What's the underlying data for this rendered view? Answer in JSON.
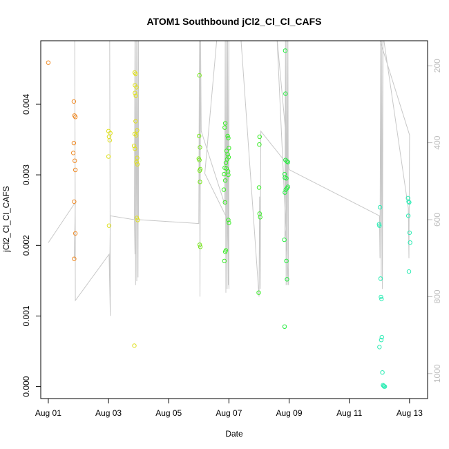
{
  "chart_data": {
    "type": "scatter",
    "title": "ATOM1 Southbound jCl2_Cl_Cl_CAFS",
    "xlabel": "Date",
    "ylabel": "jCl2_Cl_Cl_CAFS",
    "x_ticks": [
      "Aug 01",
      "Aug 03",
      "Aug 05",
      "Aug 07",
      "Aug 09",
      "Aug 11",
      "Aug 13"
    ],
    "x_tick_days": [
      1,
      3,
      5,
      7,
      9,
      11,
      13
    ],
    "xlim_days": [
      0.75,
      13.6
    ],
    "ylim": [
      -0.00017,
      0.0049
    ],
    "y_ticks": [
      0.0,
      0.001,
      0.002,
      0.003,
      0.004
    ],
    "y_tick_labels": [
      "0.000",
      "0.001",
      "0.002",
      "0.003",
      "0.004"
    ],
    "secondary_axis": {
      "side": "right",
      "reversed": true,
      "ticks": [
        200,
        400,
        600,
        800,
        1000
      ],
      "ylim": [
        1065,
        135
      ],
      "color": "#bebebe"
    },
    "point_series": {
      "color_by": "date",
      "marker": "open-circle",
      "points": [
        {
          "x": 1.0,
          "y": 0.00459,
          "color": "#f08c28"
        },
        {
          "x": 1.85,
          "y": 0.00404,
          "color": "#f08c28"
        },
        {
          "x": 1.87,
          "y": 0.00384,
          "color": "#f08c28"
        },
        {
          "x": 1.9,
          "y": 0.00382,
          "color": "#f08c28"
        },
        {
          "x": 1.83,
          "y": 0.00331,
          "color": "#f08c28"
        },
        {
          "x": 1.85,
          "y": 0.00345,
          "color": "#f08c28"
        },
        {
          "x": 1.88,
          "y": 0.0032,
          "color": "#f08c28"
        },
        {
          "x": 1.9,
          "y": 0.00307,
          "color": "#f08c28"
        },
        {
          "x": 1.86,
          "y": 0.00262,
          "color": "#f08c28"
        },
        {
          "x": 1.9,
          "y": 0.00217,
          "color": "#f08c28"
        },
        {
          "x": 1.86,
          "y": 0.00181,
          "color": "#f08c28"
        },
        {
          "x": 3.0,
          "y": 0.00362,
          "color": "#dfe020"
        },
        {
          "x": 3.06,
          "y": 0.00359,
          "color": "#dfe020"
        },
        {
          "x": 3.02,
          "y": 0.00354,
          "color": "#dfe020"
        },
        {
          "x": 3.04,
          "y": 0.00349,
          "color": "#dfe020"
        },
        {
          "x": 3.0,
          "y": 0.00326,
          "color": "#dfe020"
        },
        {
          "x": 3.02,
          "y": 0.00228,
          "color": "#dfe020"
        },
        {
          "x": 3.87,
          "y": 0.00445,
          "color": "#dfe020"
        },
        {
          "x": 3.9,
          "y": 0.00443,
          "color": "#dfe020"
        },
        {
          "x": 3.88,
          "y": 0.00427,
          "color": "#dfe020"
        },
        {
          "x": 3.93,
          "y": 0.00424,
          "color": "#dfe020"
        },
        {
          "x": 3.88,
          "y": 0.00416,
          "color": "#dfe020"
        },
        {
          "x": 3.91,
          "y": 0.00412,
          "color": "#dfe020"
        },
        {
          "x": 3.9,
          "y": 0.00376,
          "color": "#dfe020"
        },
        {
          "x": 3.95,
          "y": 0.00363,
          "color": "#dfe020"
        },
        {
          "x": 3.87,
          "y": 0.00358,
          "color": "#dfe020"
        },
        {
          "x": 3.92,
          "y": 0.00356,
          "color": "#dfe020"
        },
        {
          "x": 3.85,
          "y": 0.00341,
          "color": "#dfe020"
        },
        {
          "x": 3.88,
          "y": 0.00337,
          "color": "#dfe020"
        },
        {
          "x": 3.95,
          "y": 0.00324,
          "color": "#dfe020"
        },
        {
          "x": 3.93,
          "y": 0.00318,
          "color": "#dfe020"
        },
        {
          "x": 3.96,
          "y": 0.00315,
          "color": "#dfe020"
        },
        {
          "x": 3.94,
          "y": 0.00239,
          "color": "#dfe020"
        },
        {
          "x": 3.97,
          "y": 0.00236,
          "color": "#dfe020"
        },
        {
          "x": 3.86,
          "y": 0.00058,
          "color": "#dfe020"
        },
        {
          "x": 6.02,
          "y": 0.00441,
          "color": "#78e81e"
        },
        {
          "x": 6.01,
          "y": 0.00355,
          "color": "#78e81e"
        },
        {
          "x": 6.04,
          "y": 0.00339,
          "color": "#78e81e"
        },
        {
          "x": 6.0,
          "y": 0.00323,
          "color": "#78e81e"
        },
        {
          "x": 6.02,
          "y": 0.00321,
          "color": "#78e81e"
        },
        {
          "x": 6.05,
          "y": 0.00308,
          "color": "#78e81e"
        },
        {
          "x": 6.03,
          "y": 0.00306,
          "color": "#78e81e"
        },
        {
          "x": 6.04,
          "y": 0.0029,
          "color": "#78e81e"
        },
        {
          "x": 6.03,
          "y": 0.00201,
          "color": "#78e81e"
        },
        {
          "x": 6.05,
          "y": 0.00198,
          "color": "#78e81e"
        },
        {
          "x": 6.88,
          "y": 0.00373,
          "color": "#3cec2a"
        },
        {
          "x": 6.86,
          "y": 0.00367,
          "color": "#3cec2a"
        },
        {
          "x": 6.96,
          "y": 0.00355,
          "color": "#3cec2a"
        },
        {
          "x": 6.98,
          "y": 0.00352,
          "color": "#3cec2a"
        },
        {
          "x": 7.0,
          "y": 0.00338,
          "color": "#3cec2a"
        },
        {
          "x": 6.92,
          "y": 0.00334,
          "color": "#3cec2a"
        },
        {
          "x": 6.96,
          "y": 0.00329,
          "color": "#3cec2a"
        },
        {
          "x": 6.99,
          "y": 0.00325,
          "color": "#3cec2a"
        },
        {
          "x": 6.94,
          "y": 0.00322,
          "color": "#3cec2a"
        },
        {
          "x": 6.9,
          "y": 0.00317,
          "color": "#3cec2a"
        },
        {
          "x": 6.86,
          "y": 0.0031,
          "color": "#3cec2a"
        },
        {
          "x": 6.92,
          "y": 0.00309,
          "color": "#3cec2a"
        },
        {
          "x": 6.97,
          "y": 0.00305,
          "color": "#3cec2a"
        },
        {
          "x": 6.84,
          "y": 0.00301,
          "color": "#3cec2a"
        },
        {
          "x": 6.98,
          "y": 0.003,
          "color": "#3cec2a"
        },
        {
          "x": 6.88,
          "y": 0.00292,
          "color": "#3cec2a"
        },
        {
          "x": 6.83,
          "y": 0.00279,
          "color": "#3cec2a"
        },
        {
          "x": 6.87,
          "y": 0.00261,
          "color": "#3cec2a"
        },
        {
          "x": 6.98,
          "y": 0.00236,
          "color": "#3cec2a"
        },
        {
          "x": 7.0,
          "y": 0.00232,
          "color": "#3cec2a"
        },
        {
          "x": 6.9,
          "y": 0.00193,
          "color": "#3cec2a"
        },
        {
          "x": 6.88,
          "y": 0.00191,
          "color": "#3cec2a"
        },
        {
          "x": 6.85,
          "y": 0.00178,
          "color": "#3cec2a"
        },
        {
          "x": 8.02,
          "y": 0.00354,
          "color": "#3cec2a"
        },
        {
          "x": 8.01,
          "y": 0.00343,
          "color": "#3cec2a"
        },
        {
          "x": 8.0,
          "y": 0.00282,
          "color": "#3cec2a"
        },
        {
          "x": 8.02,
          "y": 0.00245,
          "color": "#3cec2a"
        },
        {
          "x": 8.04,
          "y": 0.0024,
          "color": "#3cec2a"
        },
        {
          "x": 7.99,
          "y": 0.00133,
          "color": "#3cec2a"
        },
        {
          "x": 8.87,
          "y": 0.00476,
          "color": "#28ec42"
        },
        {
          "x": 8.88,
          "y": 0.00415,
          "color": "#28ec42"
        },
        {
          "x": 8.88,
          "y": 0.00321,
          "color": "#28ec42"
        },
        {
          "x": 8.93,
          "y": 0.00319,
          "color": "#28ec42"
        },
        {
          "x": 8.96,
          "y": 0.00318,
          "color": "#28ec42"
        },
        {
          "x": 8.85,
          "y": 0.00301,
          "color": "#28ec42"
        },
        {
          "x": 8.86,
          "y": 0.00296,
          "color": "#28ec42"
        },
        {
          "x": 8.91,
          "y": 0.00295,
          "color": "#28ec42"
        },
        {
          "x": 8.96,
          "y": 0.00283,
          "color": "#28ec42"
        },
        {
          "x": 8.93,
          "y": 0.00281,
          "color": "#28ec42"
        },
        {
          "x": 8.89,
          "y": 0.00279,
          "color": "#28ec42"
        },
        {
          "x": 8.86,
          "y": 0.00275,
          "color": "#28ec42"
        },
        {
          "x": 8.84,
          "y": 0.00208,
          "color": "#28ec42"
        },
        {
          "x": 8.91,
          "y": 0.00178,
          "color": "#28ec42"
        },
        {
          "x": 8.93,
          "y": 0.00152,
          "color": "#28ec42"
        },
        {
          "x": 8.85,
          "y": 0.00085,
          "color": "#28ec42"
        },
        {
          "x": 12.02,
          "y": 0.00254,
          "color": "#2cecb4"
        },
        {
          "x": 11.99,
          "y": 0.0023,
          "color": "#2cecb4"
        },
        {
          "x": 12.0,
          "y": 0.00228,
          "color": "#2cecb4"
        },
        {
          "x": 12.04,
          "y": 0.00153,
          "color": "#2cecb4"
        },
        {
          "x": 12.05,
          "y": 0.00127,
          "color": "#2cecb4"
        },
        {
          "x": 12.07,
          "y": 0.00124,
          "color": "#2cecb4"
        },
        {
          "x": 12.08,
          "y": 0.0007,
          "color": "#2cecb4"
        },
        {
          "x": 12.06,
          "y": 0.00066,
          "color": "#2cecb4"
        },
        {
          "x": 12.0,
          "y": 0.00056,
          "color": "#2cecb4"
        },
        {
          "x": 12.1,
          "y": 0.0002,
          "color": "#2cecb4"
        },
        {
          "x": 12.12,
          "y": 2e-05,
          "color": "#2cecb4"
        },
        {
          "x": 12.14,
          "y": 1e-05,
          "color": "#2cecb4"
        },
        {
          "x": 12.16,
          "y": 0.0,
          "color": "#2cecb4"
        },
        {
          "x": 12.18,
          "y": 0.0,
          "color": "#2cecb4"
        },
        {
          "x": 12.95,
          "y": 0.00267,
          "color": "#2cecb4"
        },
        {
          "x": 12.97,
          "y": 0.00262,
          "color": "#2cecb4"
        },
        {
          "x": 12.99,
          "y": 0.00261,
          "color": "#2cecb4"
        },
        {
          "x": 12.96,
          "y": 0.00242,
          "color": "#2cecb4"
        },
        {
          "x": 13.0,
          "y": 0.00218,
          "color": "#2cecb4"
        },
        {
          "x": 13.02,
          "y": 0.00204,
          "color": "#2cecb4"
        },
        {
          "x": 12.98,
          "y": 0.00163,
          "color": "#2cecb4"
        }
      ]
    },
    "trace_series": {
      "color": "#c8c8c8",
      "axis": "secondary",
      "points": [
        [
          1.0,
          660
        ],
        [
          1.9,
          555
        ],
        [
          1.86,
          700
        ],
        [
          1.9,
          700
        ],
        [
          1.88,
          130
        ],
        [
          1.9,
          810
        ],
        [
          3.02,
          690
        ],
        [
          3.06,
          850
        ],
        [
          3.04,
          130
        ],
        [
          3.06,
          800
        ],
        [
          3.04,
          740
        ],
        [
          3.06,
          590
        ],
        [
          3.86,
          600
        ],
        [
          3.88,
          690
        ],
        [
          3.86,
          600
        ],
        [
          3.88,
          130
        ],
        [
          3.9,
          770
        ],
        [
          3.92,
          130
        ],
        [
          3.94,
          760
        ],
        [
          3.96,
          130
        ],
        [
          3.98,
          750
        ],
        [
          4.0,
          130
        ],
        [
          4.0,
          590
        ],
        [
          4.0,
          600
        ],
        [
          6.0,
          610
        ],
        [
          6.02,
          130
        ],
        [
          6.04,
          800
        ],
        [
          6.06,
          130
        ],
        [
          6.08,
          370
        ],
        [
          6.86,
          560
        ],
        [
          6.88,
          130
        ],
        [
          6.9,
          790
        ],
        [
          6.92,
          130
        ],
        [
          6.94,
          780
        ],
        [
          6.96,
          130
        ],
        [
          6.98,
          770
        ],
        [
          7.0,
          130
        ],
        [
          7.0,
          780
        ],
        [
          6.96,
          600
        ],
        [
          6.2,
          480
        ],
        [
          6.6,
          130
        ],
        [
          7.4,
          130
        ],
        [
          8.0,
          800
        ],
        [
          8.02,
          540
        ],
        [
          8.04,
          780
        ],
        [
          8.06,
          370
        ],
        [
          8.88,
          450
        ],
        [
          8.9,
          620
        ],
        [
          8.86,
          650
        ],
        [
          8.88,
          130
        ],
        [
          8.9,
          770
        ],
        [
          8.92,
          130
        ],
        [
          8.94,
          770
        ],
        [
          8.96,
          130
        ],
        [
          8.98,
          770
        ],
        [
          8.6,
          130
        ],
        [
          9.0,
          470
        ],
        [
          12.0,
          590
        ],
        [
          12.02,
          700
        ],
        [
          12.04,
          130
        ],
        [
          12.06,
          760
        ],
        [
          12.08,
          130
        ],
        [
          12.1,
          780
        ],
        [
          12.12,
          130
        ],
        [
          12.14,
          130
        ],
        [
          12.96,
          570
        ],
        [
          12.98,
          700
        ],
        [
          13.0,
          380
        ],
        [
          12.0,
          130
        ]
      ]
    }
  }
}
